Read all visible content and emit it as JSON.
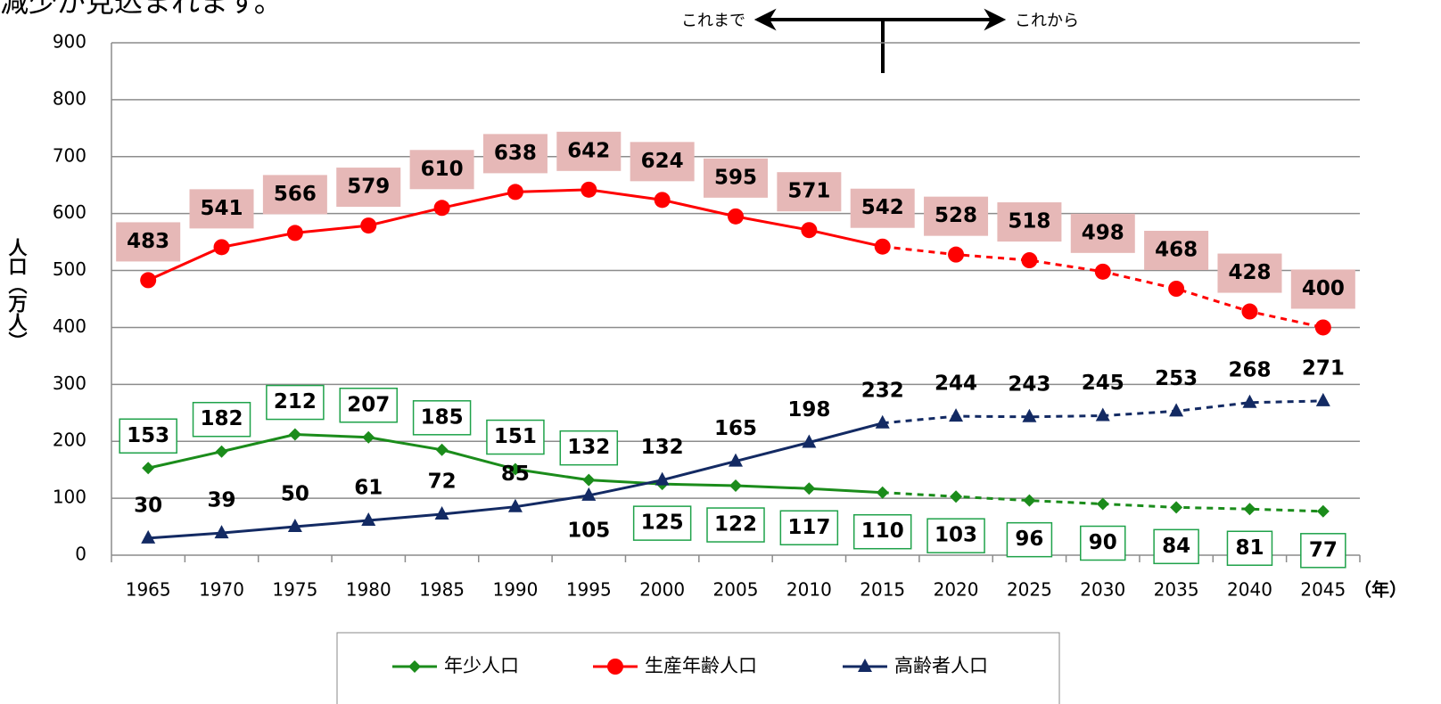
{
  "chart_data": {
    "type": "line",
    "title": "減少が見込まれます。",
    "y_label": "人口（万人）",
    "x_unit": "（年）",
    "annotations": {
      "past": "これまで",
      "future": "これから"
    },
    "categories": [
      "1965",
      "1970",
      "1975",
      "1980",
      "1985",
      "1990",
      "1995",
      "2000",
      "2005",
      "2010",
      "2015",
      "2020",
      "2025",
      "2030",
      "2035",
      "2040",
      "2045"
    ],
    "projection_from": "2015",
    "series": [
      {
        "name": "年少人口",
        "color": "#1b8c1b",
        "marker": "diamond",
        "values": [
          153,
          182,
          212,
          207,
          185,
          151,
          132,
          125,
          122,
          117,
          110,
          103,
          96,
          90,
          84,
          81,
          77
        ]
      },
      {
        "name": "生産年齢人口",
        "color": "#ff0000",
        "marker": "circle",
        "values": [
          483,
          541,
          566,
          579,
          610,
          638,
          642,
          624,
          595,
          571,
          542,
          528,
          518,
          498,
          468,
          428,
          400
        ]
      },
      {
        "name": "高齢者人口",
        "color": "#132a63",
        "marker": "triangle",
        "values": [
          30,
          39,
          50,
          61,
          72,
          85,
          105,
          132,
          165,
          198,
          232,
          244,
          243,
          245,
          253,
          268,
          271
        ]
      }
    ],
    "ylim": [
      0,
      900
    ],
    "yticks": [
      0,
      100,
      200,
      300,
      400,
      500,
      600,
      700,
      800,
      900
    ],
    "grid": true,
    "legend": "bottom"
  }
}
